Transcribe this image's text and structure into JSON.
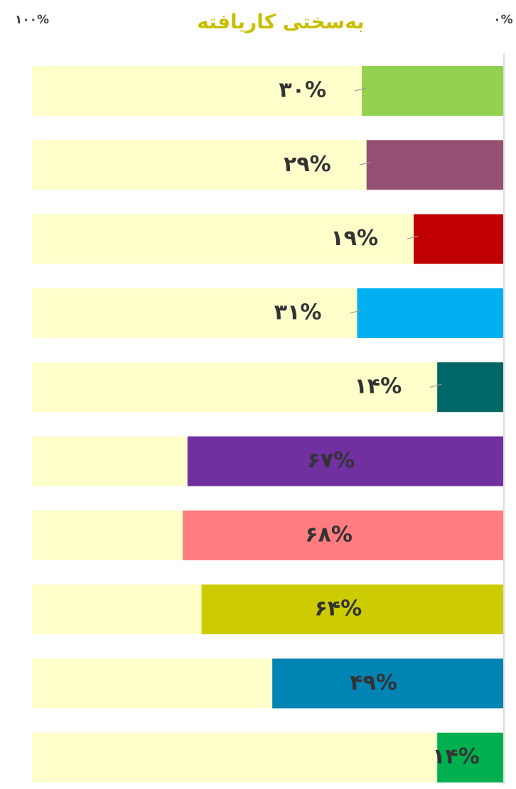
{
  "chart_data": {
    "type": "bar",
    "orientation": "horizontal",
    "x_reversed": true,
    "title": "به‌سختی کاریافته",
    "categories": [
      null,
      null,
      null,
      null,
      null,
      null,
      null,
      null,
      null,
      null
    ],
    "values": [
      30,
      29,
      19,
      31,
      14,
      67,
      68,
      64,
      49,
      14
    ],
    "value_labels": [
      "۳۰%",
      "۲۹%",
      "۱۹%",
      "۳۱%",
      "۱۴%",
      "۶۷%",
      "۶۸%",
      "۶۴%",
      "۴۹%",
      "۱۴%"
    ],
    "colors": [
      "#92d050",
      "#954f72",
      "#c00000",
      "#00b0f0",
      "#006666",
      "#7030a0",
      "#ff7c80",
      "#cccc00",
      "#0084b4",
      "#00b050"
    ],
    "track_color": "#ffffcc",
    "xlim": [
      0,
      100
    ],
    "xticks": [
      {
        "value": 100,
        "label": "۱۰۰%"
      },
      {
        "value": 0,
        "label": "۰%"
      }
    ]
  }
}
